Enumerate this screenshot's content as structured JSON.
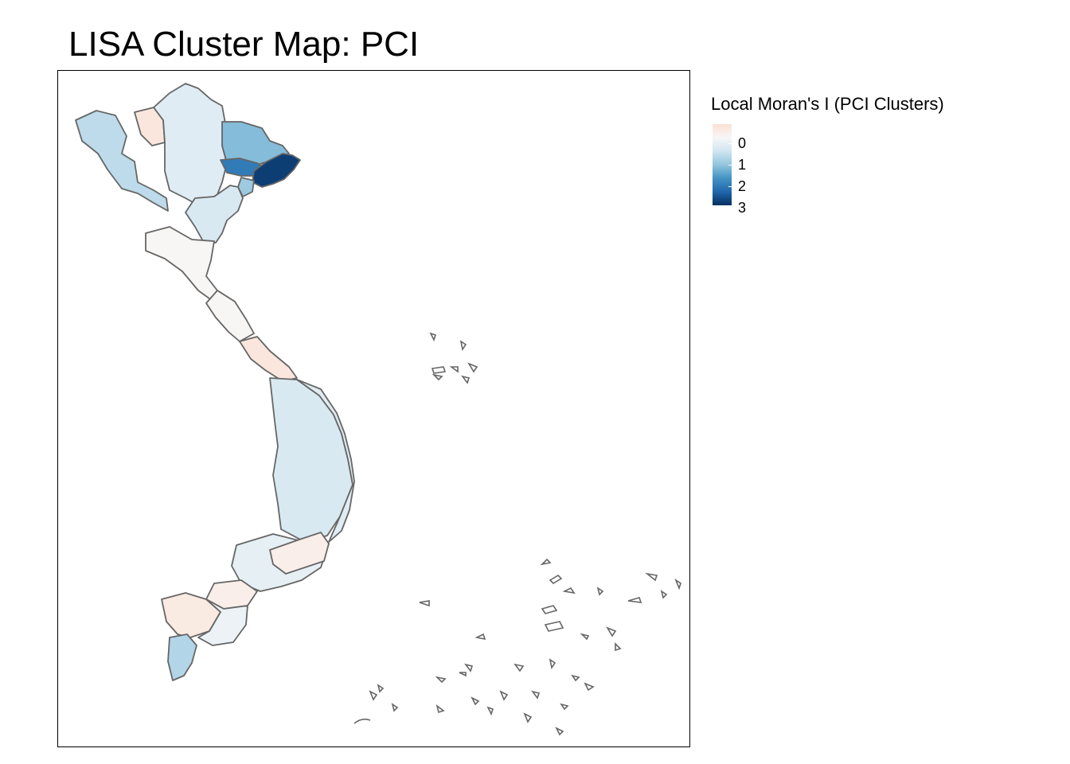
{
  "title": "LISA Cluster Map: PCI",
  "legend": {
    "title": "Local Moran's I (PCI Clusters)",
    "labels": [
      "0",
      "1",
      "2",
      "3"
    ],
    "scale_min": -0.25,
    "scale_max": 3.25,
    "colors": [
      "#FBE0D3",
      "#F7F7F7",
      "#D1E5F0",
      "#92C5DE",
      "#4393C3",
      "#2166AC",
      "#053061"
    ]
  },
  "map": {
    "border_color": "#666666",
    "fill_values": {
      "northwest-provinces": 1.1,
      "lai-chau-province": -0.1,
      "northern-midland-provinces": 0.7,
      "cao-bang-lang-son-region": 1.6,
      "quang-ninh-west": 2.4,
      "quang-ninh-east": 3.1,
      "hai-phong-area": 1.4,
      "red-river-delta": 0.8,
      "thanh-hoa-nghe-an": 0.3,
      "north-central-coast": 0.3,
      "quang-tri-hue": -0.1,
      "central-highlands": 0.8,
      "south-central-coast": 0.7,
      "southeast-region": 0.6,
      "dong-nai-area": 0.1,
      "mekong-west": 0.1,
      "an-giang-kien-giang": 0.0,
      "mekong-central": 0.5,
      "ca-mau": 1.2
    }
  }
}
